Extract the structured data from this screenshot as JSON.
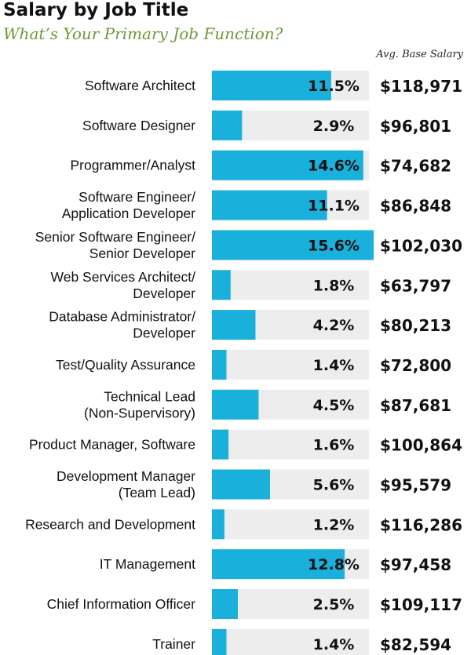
{
  "header": {
    "title": "Salary by Job Title",
    "subtitle": "What’s Your Primary Job Function?",
    "column_label": "Avg. Base Salary"
  },
  "colors": {
    "bar": "#1ab0dc",
    "track": "#ededee",
    "subtitle": "#6b9a3a"
  },
  "chart_data": {
    "type": "bar",
    "orientation": "horizontal",
    "title": "Salary by Job Title",
    "subtitle": "What’s Your Primary Job Function?",
    "value_unit": "%",
    "xlim": [
      0,
      15.6
    ],
    "secondary_column": "Avg. Base Salary",
    "rows": [
      {
        "label": [
          "Software Architect"
        ],
        "value": 11.5,
        "pct": "11.5%",
        "salary": "$118,971"
      },
      {
        "label": [
          "Software Designer"
        ],
        "value": 2.9,
        "pct": "2.9%",
        "salary": "$96,801"
      },
      {
        "label": [
          "Programmer/Analyst"
        ],
        "value": 14.6,
        "pct": "14.6%",
        "salary": "$74,682"
      },
      {
        "label": [
          "Software Engineer/",
          "Application Developer"
        ],
        "value": 11.1,
        "pct": "11.1%",
        "salary": "$86,848"
      },
      {
        "label": [
          "Senior Software Engineer/",
          "Senior Developer"
        ],
        "value": 15.6,
        "pct": "15.6%",
        "salary": "$102,030"
      },
      {
        "label": [
          "Web Services Architect/",
          "Developer"
        ],
        "value": 1.8,
        "pct": "1.8%",
        "salary": "$63,797"
      },
      {
        "label": [
          "Database Administrator/",
          "Developer"
        ],
        "value": 4.2,
        "pct": "4.2%",
        "salary": "$80,213"
      },
      {
        "label": [
          "Test/Quality Assurance"
        ],
        "value": 1.4,
        "pct": "1.4%",
        "salary": "$72,800"
      },
      {
        "label": [
          "Technical Lead",
          "(Non-Supervisory)"
        ],
        "value": 4.5,
        "pct": "4.5%",
        "salary": "$87,681"
      },
      {
        "label": [
          "Product Manager, Software"
        ],
        "value": 1.6,
        "pct": "1.6%",
        "salary": "$100,864"
      },
      {
        "label": [
          "Development Manager",
          "(Team Lead)"
        ],
        "value": 5.6,
        "pct": "5.6%",
        "salary": "$95,579"
      },
      {
        "label": [
          "Research and Development"
        ],
        "value": 1.2,
        "pct": "1.2%",
        "salary": "$116,286"
      },
      {
        "label": [
          "IT Management"
        ],
        "value": 12.8,
        "pct": "12.8%",
        "salary": "$97,458"
      },
      {
        "label": [
          "Chief Information Officer"
        ],
        "value": 2.5,
        "pct": "2.5%",
        "salary": "$109,117"
      },
      {
        "label": [
          "Trainer"
        ],
        "value": 1.4,
        "pct": "1.4%",
        "salary": "$82,594"
      }
    ]
  }
}
